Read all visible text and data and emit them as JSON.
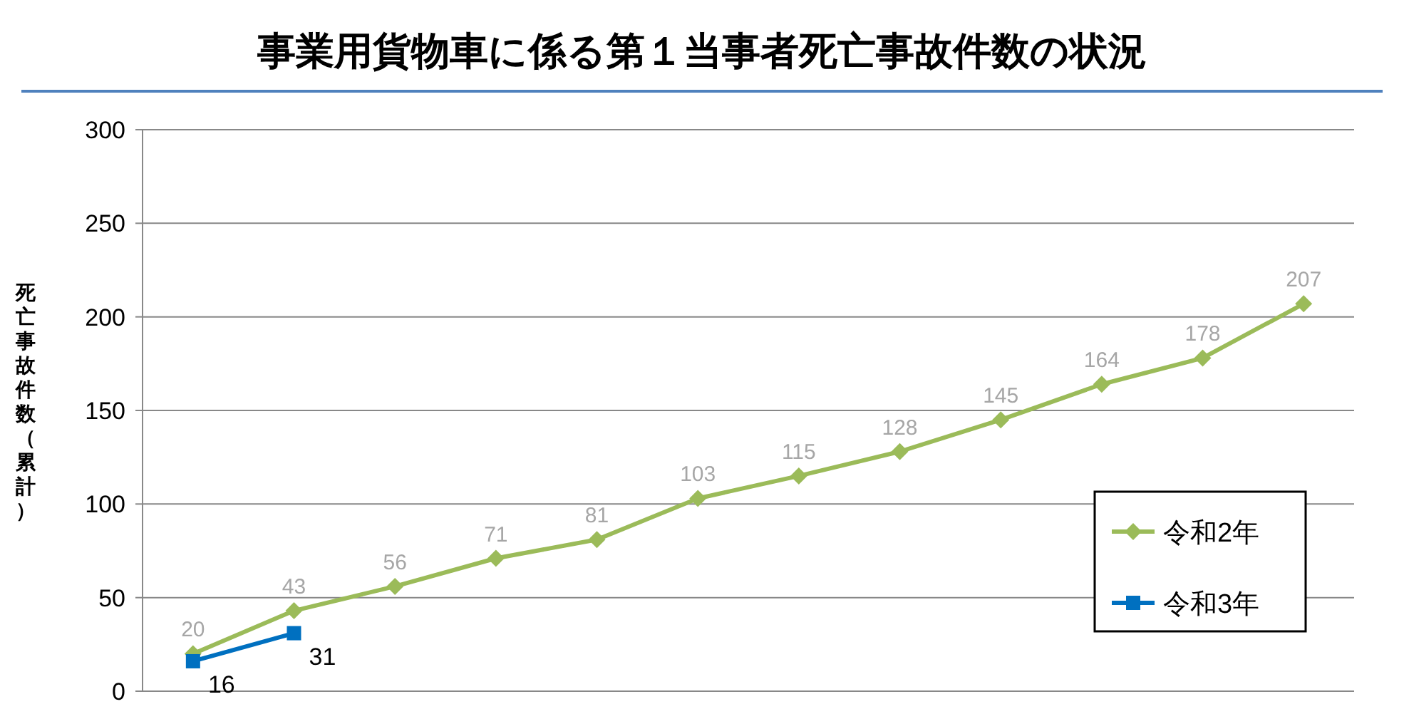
{
  "chart_data": {
    "type": "line",
    "title": "事業用貨物車に係る第１当事者死亡事故件数の状況",
    "ylabel": "死亡事故件数（累計）",
    "categories": [
      null,
      null,
      null,
      null,
      null,
      null,
      null,
      null,
      null,
      null,
      null,
      null
    ],
    "series": [
      {
        "name": "令和2年",
        "color": "#9bbb59",
        "marker": "diamond",
        "values": [
          20,
          43,
          56,
          71,
          81,
          103,
          115,
          128,
          145,
          164,
          178,
          207
        ]
      },
      {
        "name": "令和3年",
        "color": "#0070c0",
        "marker": "square",
        "values": [
          16,
          31,
          null,
          null,
          null,
          null,
          null,
          null,
          null,
          null,
          null,
          null
        ]
      }
    ],
    "ylim": [
      0,
      300
    ],
    "yticks": [
      0,
      50,
      100,
      150,
      200,
      250,
      300
    ],
    "grid": "y",
    "legend": "bottom right",
    "data_labels": true,
    "line_style": "solid"
  }
}
